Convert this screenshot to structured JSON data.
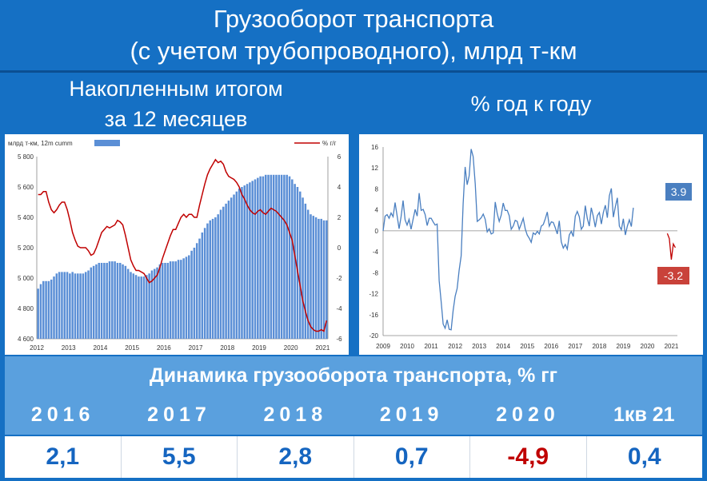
{
  "header": {
    "title_line1": "Грузооборот транспорта",
    "title_line2": "(с учетом трубопроводного), млрд т-км",
    "left_subtitle_line1": "Накопленным итогом",
    "left_subtitle_line2": "за 12 месяцев",
    "right_subtitle": "% год к году"
  },
  "colors": {
    "bar": "#5b8fd6",
    "line_red": "#c00000",
    "line_blue": "#4a7fc0",
    "label_blue_bg": "#4a7fc0",
    "label_red_bg": "#c9423a"
  },
  "chart_data": [
    {
      "type": "bar",
      "legend": [
        "млрд т-км, 12m cumm",
        "% г/г"
      ],
      "legend_placement": "top",
      "x_ticks": [
        "2012",
        "2013",
        "2014",
        "2015",
        "2016",
        "2017",
        "2018",
        "2019",
        "2020",
        "2021"
      ],
      "y_left_ticks": [
        "4 600",
        "4 800",
        "5 000",
        "5 200",
        "5 400",
        "5 600",
        "5 800"
      ],
      "y_left_range": [
        4600,
        5800
      ],
      "y_right_ticks": [
        "-6",
        "-4",
        "-2",
        "0",
        "2",
        "4",
        "6"
      ],
      "y_right_range": [
        -6,
        6
      ],
      "series": [
        {
          "name": "млрд т-км, 12m cumm",
          "kind": "bar",
          "axis": "left",
          "values": [
            4930,
            4960,
            4980,
            4980,
            4980,
            4990,
            5010,
            5030,
            5040,
            5040,
            5040,
            5040,
            5030,
            5040,
            5030,
            5030,
            5030,
            5030,
            5040,
            5050,
            5070,
            5080,
            5090,
            5100,
            5100,
            5100,
            5100,
            5110,
            5110,
            5110,
            5100,
            5100,
            5090,
            5080,
            5060,
            5040,
            5030,
            5020,
            5010,
            5010,
            5010,
            5020,
            5030,
            5050,
            5060,
            5070,
            5090,
            5100,
            5100,
            5100,
            5110,
            5110,
            5110,
            5120,
            5120,
            5130,
            5140,
            5150,
            5180,
            5200,
            5230,
            5260,
            5300,
            5330,
            5360,
            5380,
            5390,
            5400,
            5420,
            5450,
            5470,
            5490,
            5510,
            5530,
            5550,
            5570,
            5590,
            5600,
            5610,
            5620,
            5630,
            5640,
            5650,
            5660,
            5670,
            5670,
            5680,
            5680,
            5680,
            5680,
            5680,
            5680,
            5680,
            5680,
            5680,
            5670,
            5650,
            5620,
            5600,
            5570,
            5530,
            5490,
            5450,
            5420,
            5410,
            5400,
            5390,
            5390,
            5380,
            5380
          ]
        },
        {
          "name": "% г/г",
          "kind": "line",
          "axis": "right",
          "values": [
            3.5,
            3.5,
            3.7,
            3.7,
            3.0,
            2.5,
            2.3,
            2.5,
            2.8,
            3.0,
            3.0,
            2.5,
            1.8,
            1.0,
            0.5,
            0.1,
            0.0,
            0.0,
            0.0,
            -0.2,
            -0.5,
            -0.4,
            0.0,
            0.5,
            1.0,
            1.2,
            1.4,
            1.3,
            1.4,
            1.5,
            1.8,
            1.7,
            1.5,
            0.8,
            0.0,
            -0.8,
            -1.2,
            -1.5,
            -1.5,
            -1.6,
            -1.7,
            -2.0,
            -2.3,
            -2.2,
            -2.0,
            -1.8,
            -1.3,
            -0.7,
            -0.2,
            0.3,
            0.8,
            1.2,
            1.2,
            1.6,
            2.0,
            2.2,
            2.0,
            2.2,
            2.2,
            2.0,
            2.0,
            2.8,
            3.5,
            4.2,
            4.8,
            5.2,
            5.5,
            5.8,
            5.6,
            5.7,
            5.5,
            5.0,
            4.7,
            4.6,
            4.5,
            4.3,
            4.0,
            3.5,
            3.2,
            2.8,
            2.5,
            2.3,
            2.2,
            2.4,
            2.5,
            2.3,
            2.2,
            2.4,
            2.6,
            2.5,
            2.4,
            2.2,
            2.0,
            1.8,
            1.5,
            1.0,
            0.5,
            -0.5,
            -1.5,
            -2.5,
            -3.5,
            -4.2,
            -4.8,
            -5.2,
            -5.4,
            -5.5,
            -5.5,
            -5.4,
            -5.5,
            -4.8
          ]
        }
      ]
    },
    {
      "type": "line",
      "x_ticks": [
        "2009",
        "2010",
        "2011",
        "2012",
        "2013",
        "2014",
        "2015",
        "2016",
        "2017",
        "2018",
        "2019",
        "2020",
        "2021"
      ],
      "y_ticks": [
        "16",
        "12",
        "8",
        "4",
        "0",
        "-4",
        "-8",
        "-12",
        "-16",
        "-20"
      ],
      "y_range": [
        -20,
        16
      ],
      "series": [
        {
          "name": "",
          "x_start": 2009.0,
          "x_step": 0.08333,
          "values": [
            0,
            2.8,
            3.1,
            2.4,
            3.4,
            2.7,
            5.4,
            2.9,
            0.4,
            2.7,
            5.8,
            2.1,
            1.1,
            2.2,
            0.3,
            2.2,
            4.1,
            2.8,
            7.2,
            3.9,
            4.1,
            3.1,
            1.0,
            2.4,
            2.4,
            1.7,
            1.1,
            1.3,
            -9.5,
            -13.5,
            -17.8,
            -18.6,
            -17.0,
            -18.8,
            -18.9,
            -15.2,
            -12.5,
            -11.0,
            -7.5,
            -4.8,
            5.2,
            12.2,
            8.8,
            10.5,
            15.6,
            14.2,
            9.0,
            1.8,
            2.1,
            2.5,
            3.2,
            2.2,
            -0.2,
            0.4,
            -0.6,
            -0.4,
            5.5,
            3.3,
            1.8,
            3.0,
            5.3,
            3.9,
            3.9,
            2.9,
            0.3,
            0.9,
            2.0,
            1.8,
            0.3,
            1.3,
            2.4,
            0.4,
            -0.8,
            -1.4,
            -2.2,
            -0.4,
            -0.7,
            -0.1,
            -0.6,
            0.9,
            1.2,
            2.3,
            3.6,
            0.9,
            1.7,
            1.6,
            0.6,
            -0.6,
            1.9,
            -2.1,
            -3.3,
            -2.6,
            -3.5,
            -0.8,
            -0.1,
            -1.1,
            2.8,
            3.7,
            2.7,
            0.3,
            0.9,
            4.8,
            2.4,
            0.9,
            4.4,
            2.8,
            0.7,
            2.9,
            3.5,
            1.3,
            3.5,
            4.9,
            2.5,
            6.7,
            8.1,
            2.6,
            4.6,
            6.3,
            0.9,
            0.2,
            2.3,
            -0.8,
            0.9,
            2.1,
            0.8,
            4.4
          ]
        },
        {
          "name": "",
          "x_start": 2020.83,
          "x_step": 0.08333,
          "values": [
            -0.5,
            -1.5,
            -5.5,
            -2.5,
            -3.2
          ]
        }
      ],
      "annotations": [
        {
          "text": "3.9",
          "color": "blue"
        },
        {
          "text": "-3.2",
          "color": "red"
        }
      ]
    }
  ],
  "table": {
    "title": "Динамика грузооборота транспорта, % гг",
    "years": [
      "2016",
      "2017",
      "2018",
      "2019",
      "2020",
      "1кв 21"
    ],
    "values": [
      "2,1",
      "5,5",
      "2,8",
      "0,7",
      "-4,9",
      "0,4"
    ]
  }
}
